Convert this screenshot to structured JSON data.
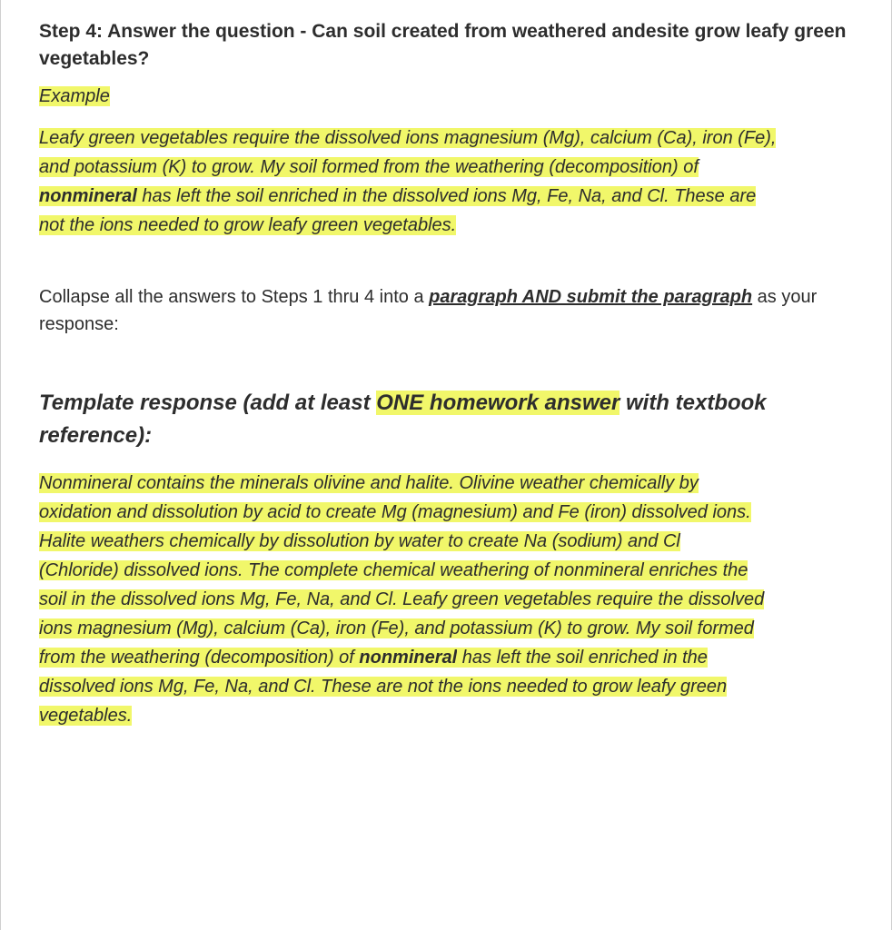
{
  "highlight_color": "#f1f76a",
  "text_color": "#2d2d2d",
  "border_color": "#d0d0d0",
  "step4": {
    "heading_prefix": "Step 4:  Answer the question - ",
    "heading_question": "Can soil created from weathered andesite grow leafy green vegetables?"
  },
  "example": {
    "label": "Example",
    "line1": "Leafy green vegetables require the dissolved ions magnesium (Mg), calcium (Ca), iron (Fe),",
    "line2": "and potassium (K) to grow.  My soil formed from the weathering (decomposition) of ",
    "line3_bold": "nonmineral",
    "line3_rest": " has left the soil enriched in the dissolved ions Mg, Fe, Na, and Cl.  These are",
    "line4": "not the ions needed to grow leafy green vegetables."
  },
  "collapse": {
    "pre": "Collapse all the answers to Steps 1 thru 4 into a ",
    "emph": "paragraph AND submit the paragraph",
    "post": " as your response:"
  },
  "template": {
    "heading_pre": "Template response (add at least ",
    "heading_hl": "ONE homework answer",
    "heading_post": " with textbook reference):",
    "l1": "Nonmineral contains the minerals olivine and halite.  Olivine weather chemically by",
    "l2": "oxidation and dissolution by acid to create Mg (magnesium) and Fe (iron) dissolved ions.",
    "l3": " Halite weathers chemically by dissolution by water to create Na (sodium) and Cl",
    "l4": "(Chloride) dissolved ions. The complete chemical weathering of nonmineral enriches the",
    "l5": "soil in the dissolved ions Mg, Fe, Na, and Cl.  Leafy green vegetables require the dissolved",
    "l6": "ions magnesium (Mg), calcium (Ca), iron (Fe), and potassium (K) to grow.  My soil formed",
    "l7a": "from the weathering (decomposition) of ",
    "l7_bold": "nonmineral",
    "l7b": " has left the soil enriched in the",
    "l8": "dissolved ions Mg, Fe, Na, and Cl.  These are not the ions needed to grow leafy green",
    "l9": "vegetables."
  }
}
